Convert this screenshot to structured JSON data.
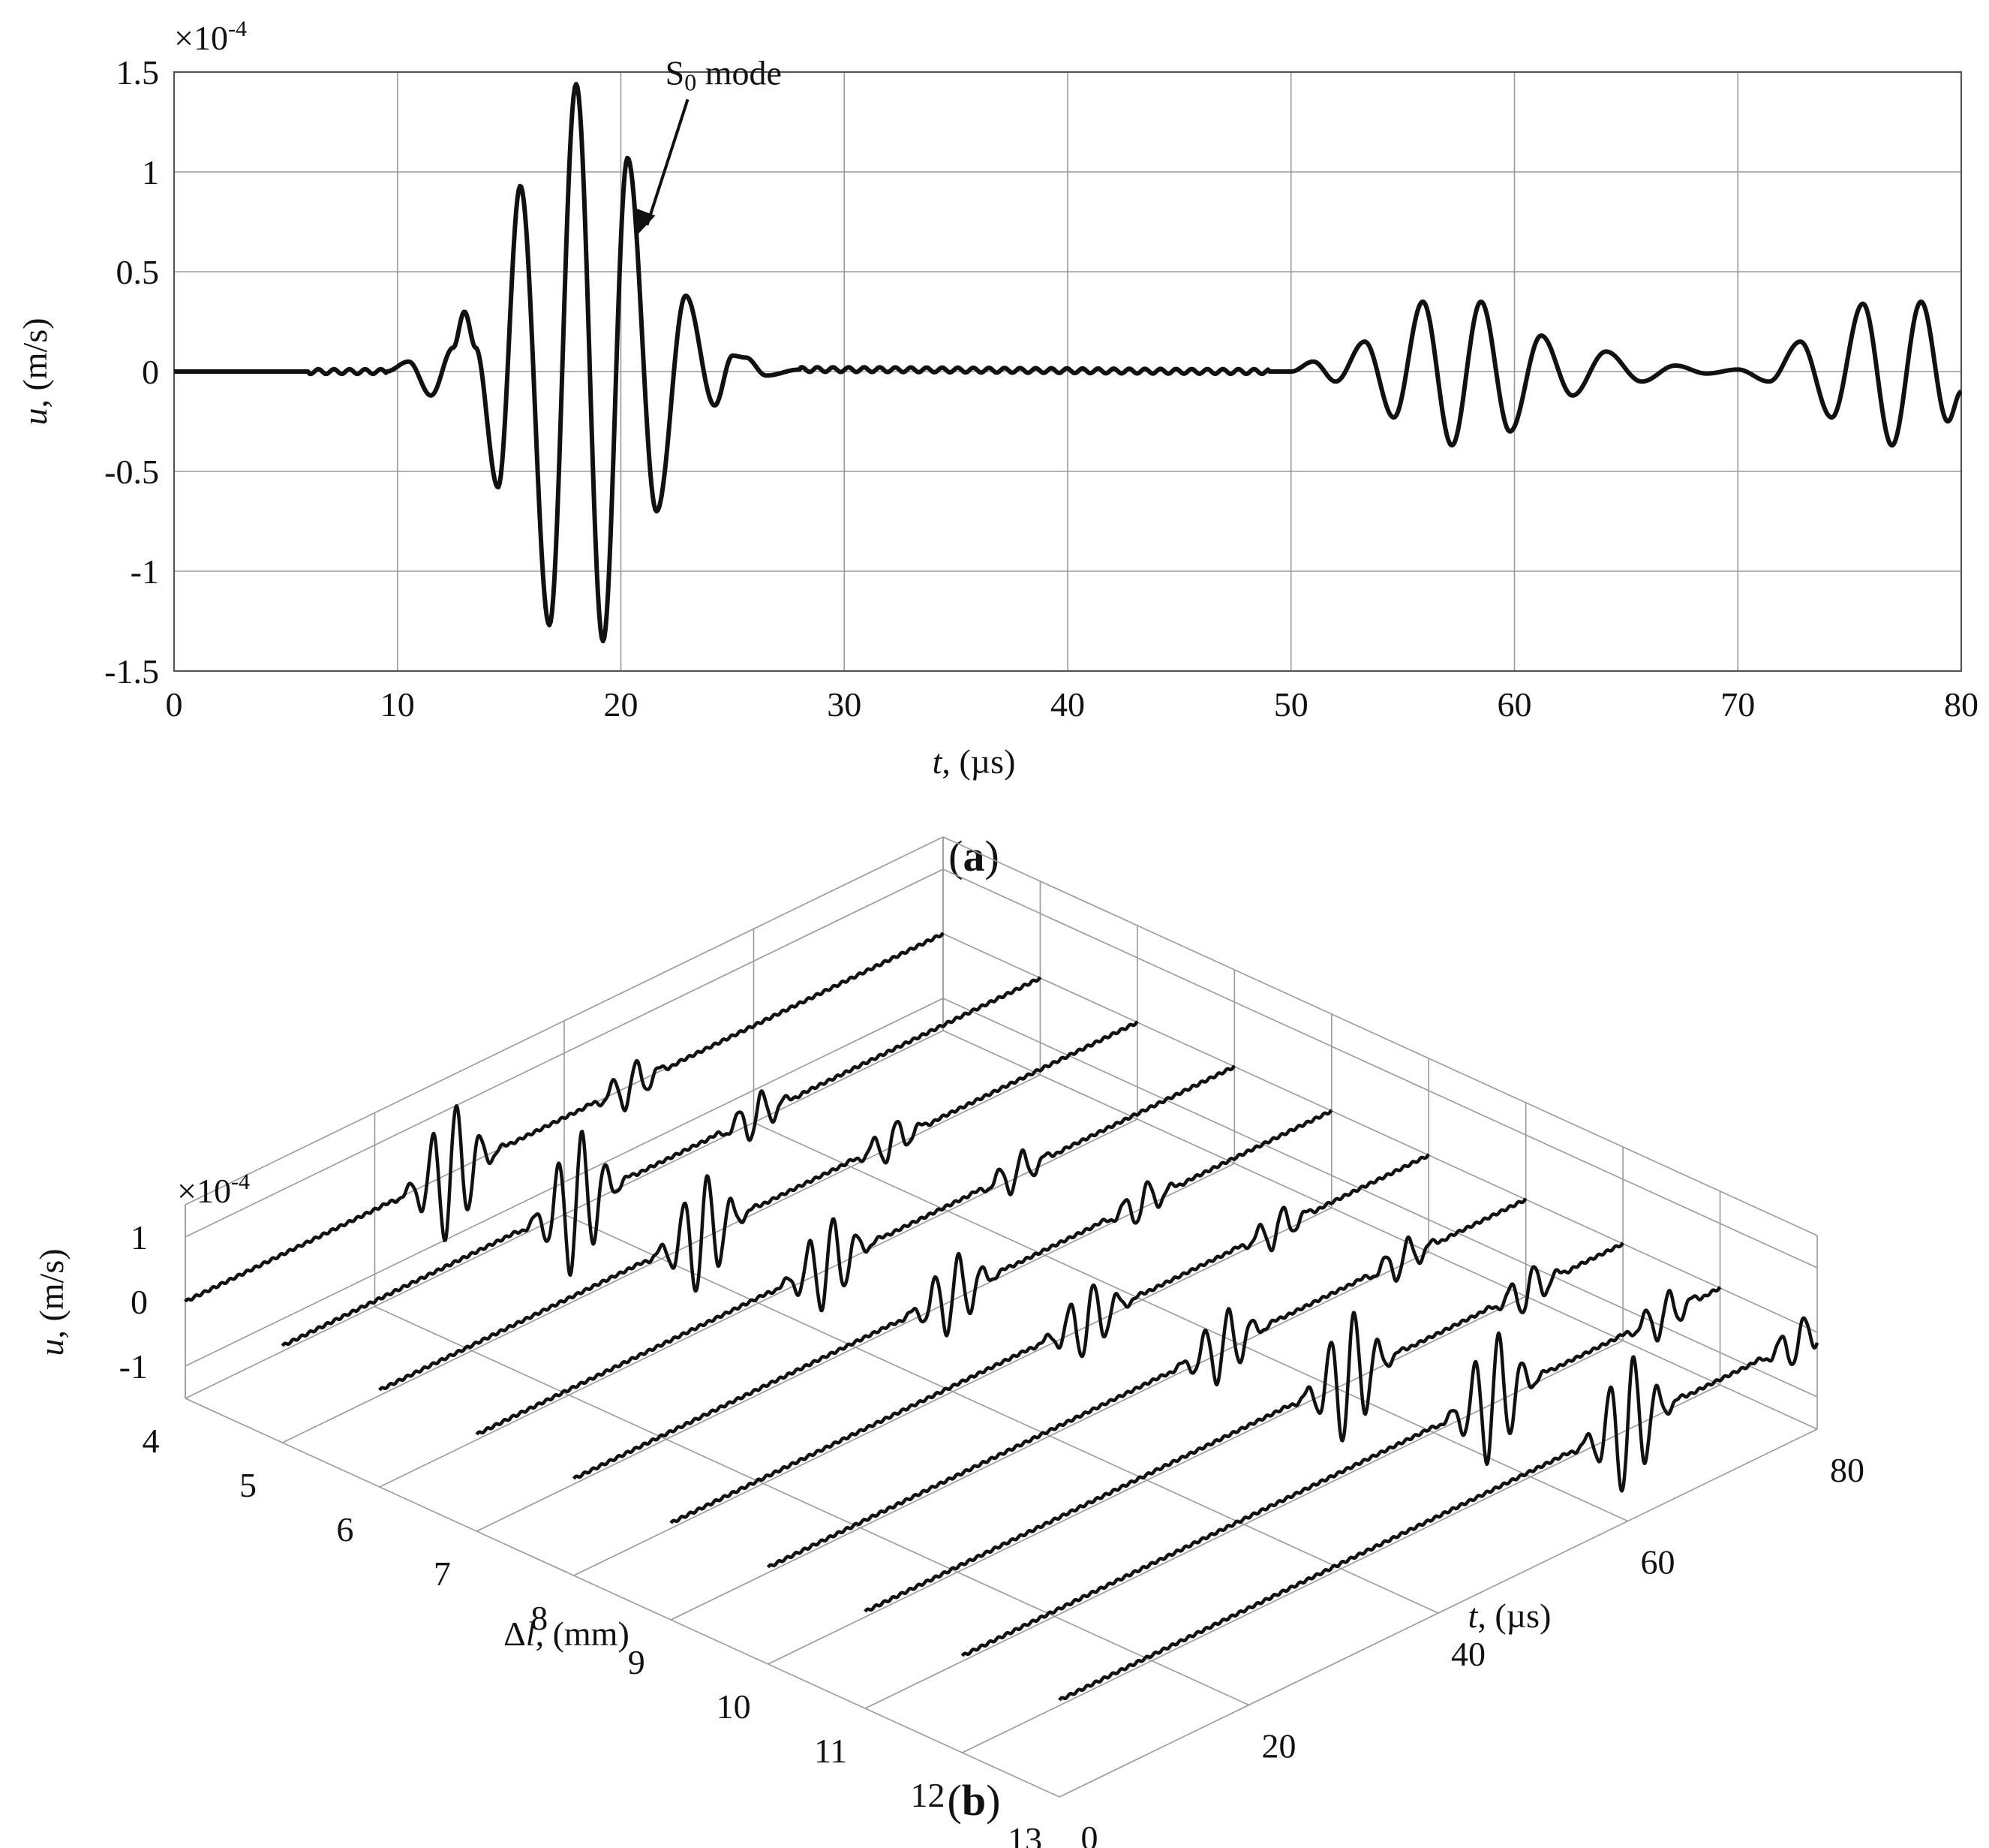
{
  "chart_data": [
    {
      "panel": "(a)",
      "panel_label_parts": [
        "(",
        "a",
        ")"
      ],
      "type": "line",
      "xlabel_var": "t",
      "xlabel_unit": ", (µs)",
      "ylabel_var": "u",
      "ylabel_unit": ", (m/s)",
      "y_multiplier_base": "×10",
      "y_multiplier_exp": "-4",
      "xlim": [
        0,
        80
      ],
      "ylim": [
        -1.5,
        1.5
      ],
      "xticks": [
        0,
        10,
        20,
        30,
        40,
        50,
        60,
        70,
        80
      ],
      "yticks": [
        -1.5,
        -1,
        -0.5,
        0,
        0.5,
        1,
        1.5
      ],
      "xtick_labels": [
        "0",
        "10",
        "20",
        "30",
        "40",
        "50",
        "60",
        "70",
        "80"
      ],
      "ytick_labels": [
        "-1.5",
        "-1",
        "-0.5",
        "0",
        "0.5",
        "1",
        "1.5"
      ],
      "grid": true,
      "annotation": {
        "text_main": "S",
        "text_sub": "0",
        "text_rest": " mode",
        "text_x": 24.0,
        "text_y": 1.1,
        "arrow_to_x": 20.7,
        "arrow_to_y": 0.68
      },
      "series": [
        {
          "x": [
            0,
            6,
            9.5,
            10.5,
            11.5,
            12.5,
            13,
            13.5,
            14.5,
            15.5,
            16.8,
            18,
            19.2,
            20.3,
            21.6,
            22.9,
            24.2,
            25,
            25.6,
            26.5,
            28,
            50,
            51,
            52,
            53.3,
            54.6,
            55.9,
            57.2,
            58.5,
            59.8,
            61.2,
            62.6,
            64.1,
            65.7,
            67.2,
            68.6,
            70,
            71.4,
            72.8,
            74.2,
            75.6,
            76.9,
            78.2,
            79.4,
            80
          ],
          "y": [
            0,
            0,
            0.0,
            0.05,
            -0.12,
            0.12,
            0.3,
            0.12,
            -0.58,
            0.93,
            -1.27,
            1.44,
            -1.35,
            1.07,
            -0.7,
            0.38,
            -0.17,
            0.08,
            0.07,
            -0.02,
            0.01,
            0,
            0.05,
            -0.05,
            0.15,
            -0.23,
            0.35,
            -0.37,
            0.35,
            -0.3,
            0.18,
            -0.12,
            0.1,
            -0.05,
            0.03,
            -0.01,
            0.01,
            -0.05,
            0.15,
            -0.23,
            0.34,
            -0.37,
            0.35,
            -0.25,
            -0.1
          ]
        }
      ]
    },
    {
      "panel": "(b)",
      "panel_label_parts": [
        "(",
        "b",
        ")"
      ],
      "type": "line3d",
      "axis_dl_label_prefix": "Δ",
      "axis_dl_label_var": "l",
      "axis_dl_label_unit": ", (mm)",
      "axis_t_label_var": "t",
      "axis_t_label_unit": ", (µs)",
      "axis_u_label_var": "u",
      "axis_u_label_unit": ", (m/s)",
      "u_multiplier_base": "×10",
      "u_multiplier_exp": "-4",
      "dl_lim": [
        4,
        13
      ],
      "t_lim": [
        0,
        80
      ],
      "u_lim": [
        -1.5,
        1.5
      ],
      "dl_ticks": [
        4,
        5,
        6,
        7,
        8,
        9,
        10,
        11,
        12,
        13
      ],
      "t_ticks": [
        0,
        20,
        40,
        60,
        80
      ],
      "u_ticks": [
        -1,
        0,
        1
      ],
      "dl_tick_labels": [
        "4",
        "5",
        "6",
        "7",
        "8",
        "9",
        "10",
        "11",
        "12",
        "13"
      ],
      "t_tick_labels": [
        "0",
        "20",
        "40",
        "60",
        "80"
      ],
      "u_tick_labels": [
        "-1",
        "0",
        "1"
      ],
      "traces": [
        {
          "dl": 4,
          "packet_center_t": 28,
          "packet_amp": 1.05,
          "echo_t": 47,
          "echo_amp": 0.35
        },
        {
          "dl": 5,
          "packet_center_t": 31,
          "packet_amp": 1.1,
          "echo_t": 50,
          "echo_amp": 0.35
        },
        {
          "dl": 6,
          "packet_center_t": 34,
          "packet_amp": 0.9,
          "echo_t": 54,
          "echo_amp": 0.3
        },
        {
          "dl": 7,
          "packet_center_t": 37,
          "packet_amp": 0.7,
          "echo_t": 57,
          "echo_amp": 0.3
        },
        {
          "dl": 8,
          "packet_center_t": 40,
          "packet_amp": 0.6,
          "echo_t": 60,
          "echo_amp": 0.3
        },
        {
          "dl": 9,
          "packet_center_t": 44,
          "packet_amp": 0.55,
          "echo_t": 64,
          "echo_amp": 0.3
        },
        {
          "dl": 10,
          "packet_center_t": 48,
          "packet_amp": 0.55,
          "echo_t": 67,
          "echo_amp": 0.3
        },
        {
          "dl": 11,
          "packet_center_t": 51,
          "packet_amp": 1.0,
          "echo_t": 70,
          "echo_amp": 0.35
        },
        {
          "dl": 12,
          "packet_center_t": 56,
          "packet_amp": 1.0,
          "echo_t": 74,
          "echo_amp": 0.35
        },
        {
          "dl": 13,
          "packet_center_t": 60,
          "packet_amp": 1.05,
          "echo_t": 78,
          "echo_amp": 0.35
        }
      ]
    }
  ]
}
